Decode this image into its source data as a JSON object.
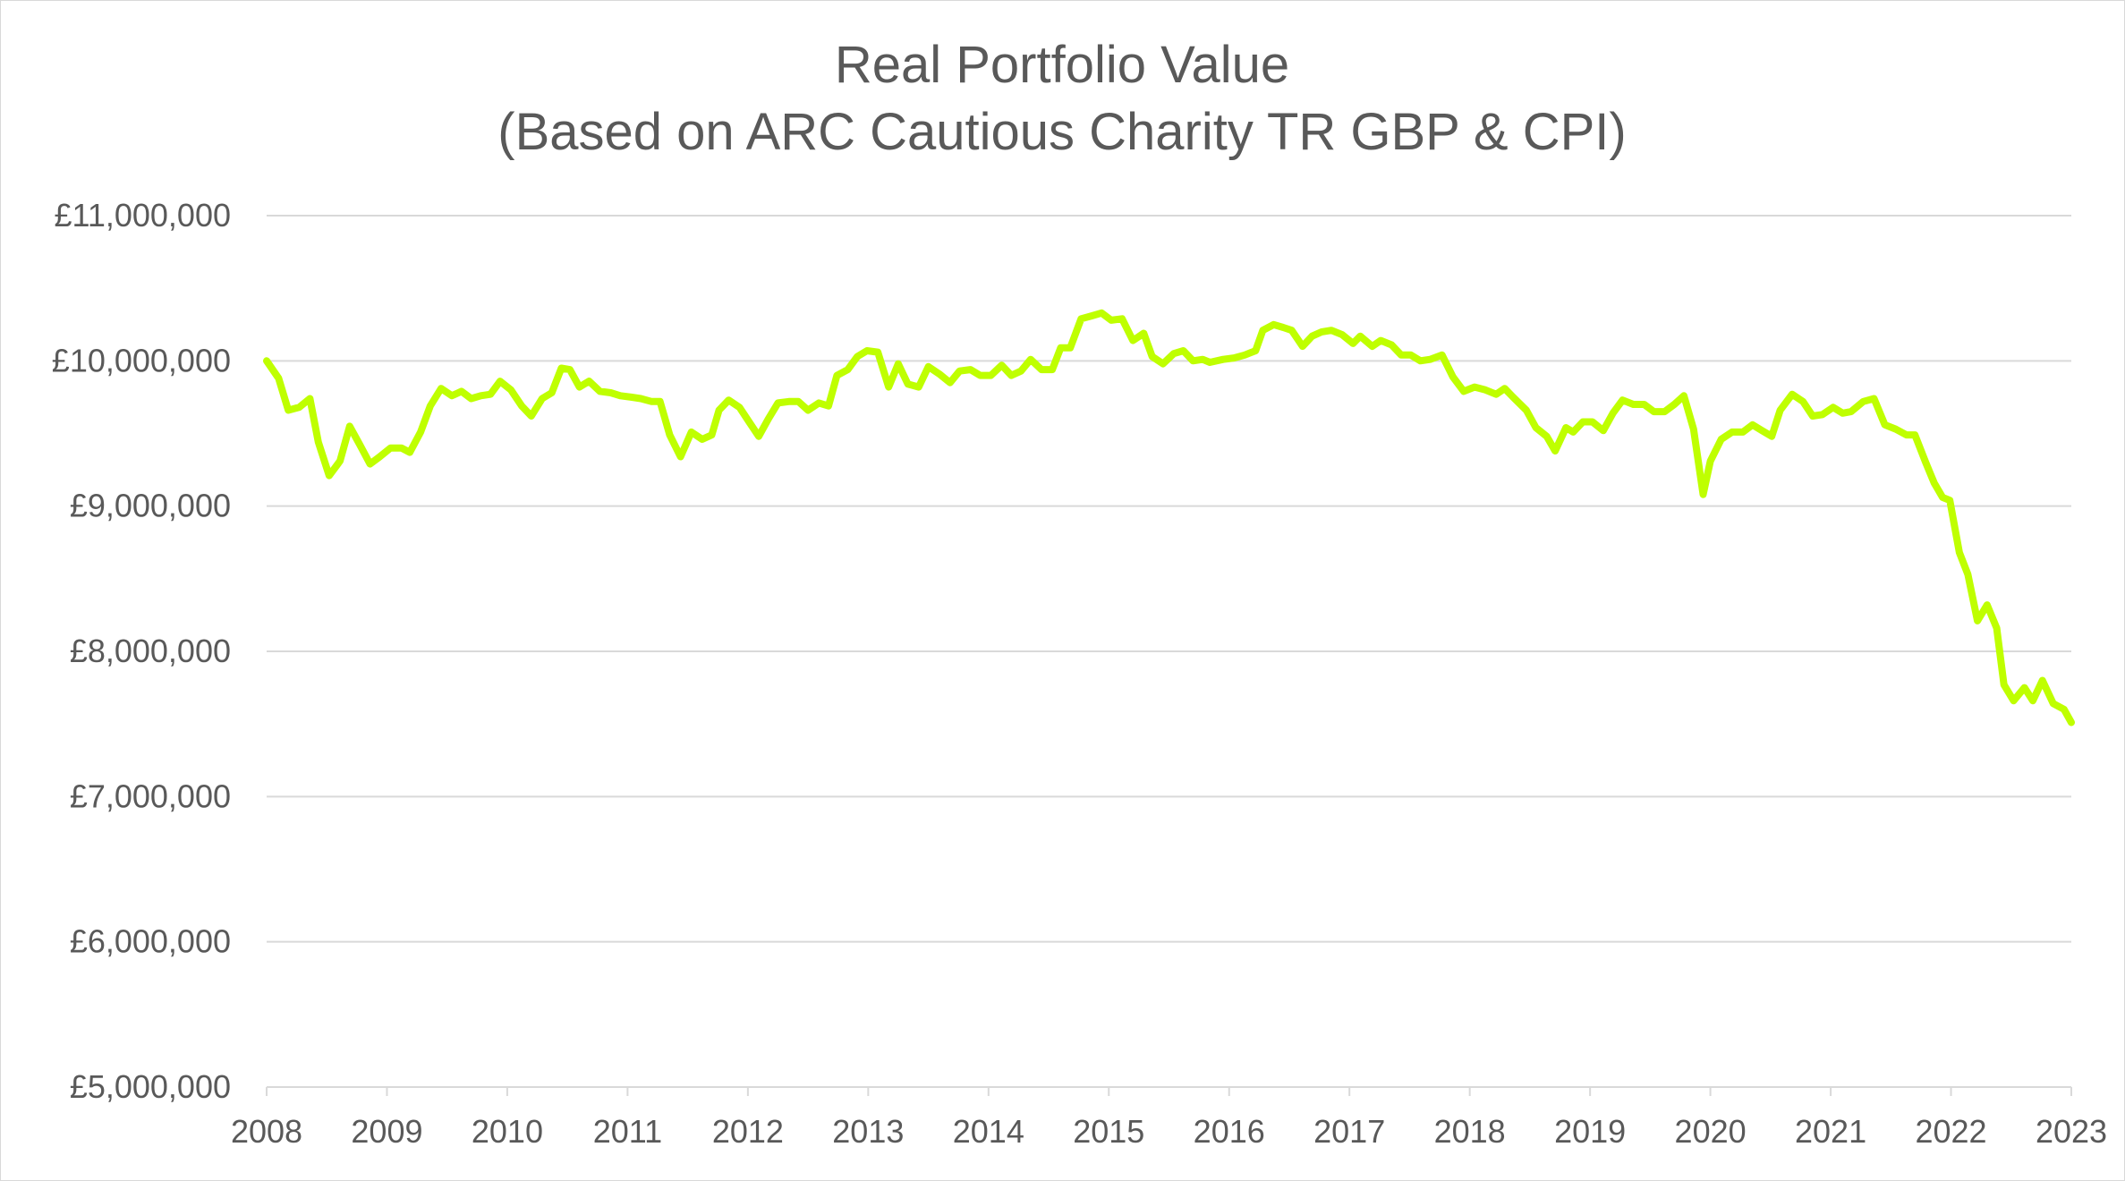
{
  "chart_data": {
    "type": "line",
    "title": [
      "Real Portfolio Value",
      "(Based on ARC Cautious Charity TR GBP & CPI)"
    ],
    "xlabel": "",
    "ylabel": "",
    "xlim": [
      2008,
      2023
    ],
    "ylim": [
      5000000,
      11000000
    ],
    "x_ticks": [
      "2008",
      "2009",
      "2010",
      "2011",
      "2012",
      "2013",
      "2014",
      "2015",
      "2016",
      "2017",
      "2018",
      "2019",
      "2020",
      "2021",
      "2022",
      "2023"
    ],
    "y_ticks": [
      "£5,000,000",
      "£6,000,000",
      "£7,000,000",
      "£8,000,000",
      "£9,000,000",
      "£10,000,000",
      "£11,000,000"
    ],
    "grid": "horizontal",
    "legend": "none",
    "line_color": "#BFFF00",
    "gridline_color": "#D9D9D9",
    "series": [
      {
        "x": [
          2008.0,
          2008.1,
          2008.18,
          2008.27,
          2008.36,
          2008.43,
          2008.52,
          2008.61,
          2008.69,
          2008.77,
          2008.86,
          2008.94,
          2009.03,
          2009.12,
          2009.19,
          2009.28,
          2009.36,
          2009.45,
          2009.54,
          2009.62,
          2009.7,
          2009.78,
          2009.86,
          2009.94,
          2010.03,
          2010.12,
          2010.2,
          2010.29,
          2010.37,
          2010.45,
          2010.52,
          2010.6,
          2010.68,
          2010.77,
          2010.86,
          2010.94,
          2011.03,
          2011.11,
          2011.2,
          2011.27,
          2011.35,
          2011.44,
          2011.53,
          2011.62,
          2011.7,
          2011.76,
          2011.84,
          2011.93,
          2012.01,
          2012.09,
          2012.17,
          2012.25,
          2012.34,
          2012.42,
          2012.5,
          2012.59,
          2012.67,
          2012.74,
          2012.83,
          2012.91,
          2012.99,
          2013.08,
          2013.17,
          2013.25,
          2013.33,
          2013.42,
          2013.5,
          2013.59,
          2013.68,
          2013.76,
          2013.85,
          2013.93,
          2014.02,
          2014.11,
          2014.19,
          2014.27,
          2014.35,
          2014.44,
          2014.53,
          2014.6,
          2014.68,
          2014.77,
          2014.86,
          2014.94,
          2015.02,
          2015.11,
          2015.2,
          2015.29,
          2015.36,
          2015.45,
          2015.54,
          2015.62,
          2015.7,
          2015.78,
          2015.84,
          2015.95,
          2016.04,
          2016.13,
          2016.22,
          2016.28,
          2016.37,
          2016.45,
          2016.52,
          2016.61,
          2016.69,
          2016.77,
          2016.85,
          2016.94,
          2017.03,
          2017.09,
          2017.19,
          2017.26,
          2017.35,
          2017.43,
          2017.51,
          2017.59,
          2017.67,
          2017.77,
          2017.86,
          2017.95,
          2018.04,
          2018.13,
          2018.22,
          2018.29,
          2018.36,
          2018.47,
          2018.55,
          2018.64,
          2018.71,
          2018.8,
          2018.86,
          2018.94,
          2019.02,
          2019.11,
          2019.19,
          2019.27,
          2019.36,
          2019.45,
          2019.53,
          2019.62,
          2019.7,
          2019.78,
          2019.86,
          2019.94,
          2020.0,
          2020.09,
          2020.18,
          2020.27,
          2020.35,
          2020.43,
          2020.51,
          2020.58,
          2020.68,
          2020.77,
          2020.85,
          2020.93,
          2021.02,
          2021.1,
          2021.17,
          2021.27,
          2021.36,
          2021.45,
          2021.54,
          2021.63,
          2021.7,
          2021.79,
          2021.86,
          2021.93,
          2021.99,
          2022.07,
          2022.14,
          2022.22,
          2022.3,
          2022.38,
          2022.44,
          2022.52,
          2022.61,
          2022.68,
          2022.76,
          2022.85,
          2022.94,
          2023.0
        ],
        "y": [
          10000000,
          9880000,
          9660000,
          9680000,
          9740000,
          9440000,
          9210000,
          9310000,
          9550000,
          9430000,
          9290000,
          9340000,
          9400000,
          9400000,
          9370000,
          9510000,
          9690000,
          9810000,
          9760000,
          9790000,
          9740000,
          9760000,
          9770000,
          9860000,
          9800000,
          9690000,
          9620000,
          9740000,
          9780000,
          9950000,
          9940000,
          9820000,
          9860000,
          9790000,
          9780000,
          9760000,
          9750000,
          9740000,
          9720000,
          9720000,
          9490000,
          9340000,
          9510000,
          9460000,
          9490000,
          9660000,
          9730000,
          9680000,
          9580000,
          9480000,
          9600000,
          9710000,
          9720000,
          9720000,
          9660000,
          9710000,
          9690000,
          9900000,
          9940000,
          10030000,
          10070000,
          10060000,
          9820000,
          9980000,
          9840000,
          9820000,
          9960000,
          9910000,
          9850000,
          9930000,
          9940000,
          9900000,
          9900000,
          9970000,
          9900000,
          9930000,
          10010000,
          9940000,
          9940000,
          10090000,
          10090000,
          10290000,
          10310000,
          10330000,
          10280000,
          10290000,
          10140000,
          10190000,
          10030000,
          9980000,
          10050000,
          10070000,
          10000000,
          10010000,
          9990000,
          10010000,
          10020000,
          10040000,
          10070000,
          10210000,
          10250000,
          10230000,
          10210000,
          10100000,
          10170000,
          10200000,
          10210000,
          10180000,
          10120000,
          10170000,
          10100000,
          10140000,
          10110000,
          10040000,
          10040000,
          10000000,
          10010000,
          10040000,
          9890000,
          9790000,
          9820000,
          9800000,
          9770000,
          9810000,
          9750000,
          9660000,
          9540000,
          9480000,
          9380000,
          9540000,
          9510000,
          9580000,
          9580000,
          9520000,
          9640000,
          9730000,
          9700000,
          9700000,
          9650000,
          9650000,
          9700000,
          9760000,
          9530000,
          9080000,
          9310000,
          9460000,
          9510000,
          9510000,
          9560000,
          9520000,
          9480000,
          9660000,
          9770000,
          9720000,
          9620000,
          9630000,
          9680000,
          9640000,
          9650000,
          9720000,
          9740000,
          9560000,
          9530000,
          9490000,
          9490000,
          9300000,
          9160000,
          9060000,
          9040000,
          8680000,
          8530000,
          8210000,
          8320000,
          8160000,
          7770000,
          7660000,
          7750000,
          7660000,
          7800000,
          7640000,
          7600000,
          7510000
        ]
      }
    ]
  }
}
